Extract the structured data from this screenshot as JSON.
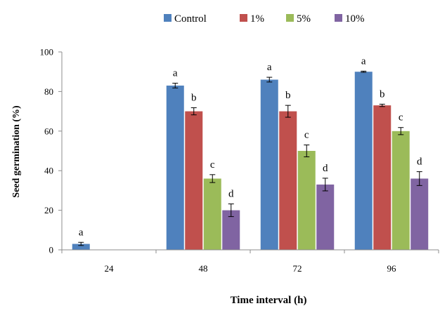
{
  "chart_data": {
    "type": "bar",
    "title": "",
    "xlabel": "Time interval (h)",
    "ylabel": "Seed germination (%)",
    "ylim": [
      0,
      100
    ],
    "yticks": [
      0,
      20,
      40,
      60,
      80,
      100
    ],
    "grid": false,
    "legend_position": "top",
    "categories": [
      "24",
      "48",
      "72",
      "96"
    ],
    "series": [
      {
        "name": "Control",
        "color": "#4f81bd",
        "values": [
          3,
          83,
          86,
          90
        ],
        "errors": [
          0.8,
          1.2,
          1.2,
          0.3
        ],
        "labels": [
          "a",
          "a",
          "a",
          "a"
        ]
      },
      {
        "name": "1%",
        "color": "#c0504d",
        "values": [
          0,
          70,
          70,
          73
        ],
        "errors": [
          0,
          1.8,
          3,
          0.6
        ],
        "labels": [
          "",
          "b",
          "b",
          "b"
        ]
      },
      {
        "name": "5%",
        "color": "#9bbb59",
        "values": [
          0,
          36,
          50,
          60
        ],
        "errors": [
          0,
          2,
          3,
          1.8
        ],
        "labels": [
          "",
          "c",
          "c",
          "c"
        ]
      },
      {
        "name": "10%",
        "color": "#8064a2",
        "values": [
          0,
          20,
          33,
          36
        ],
        "errors": [
          0,
          3.2,
          3.2,
          3.5
        ],
        "labels": [
          "",
          "d",
          "d",
          "d"
        ]
      }
    ]
  }
}
